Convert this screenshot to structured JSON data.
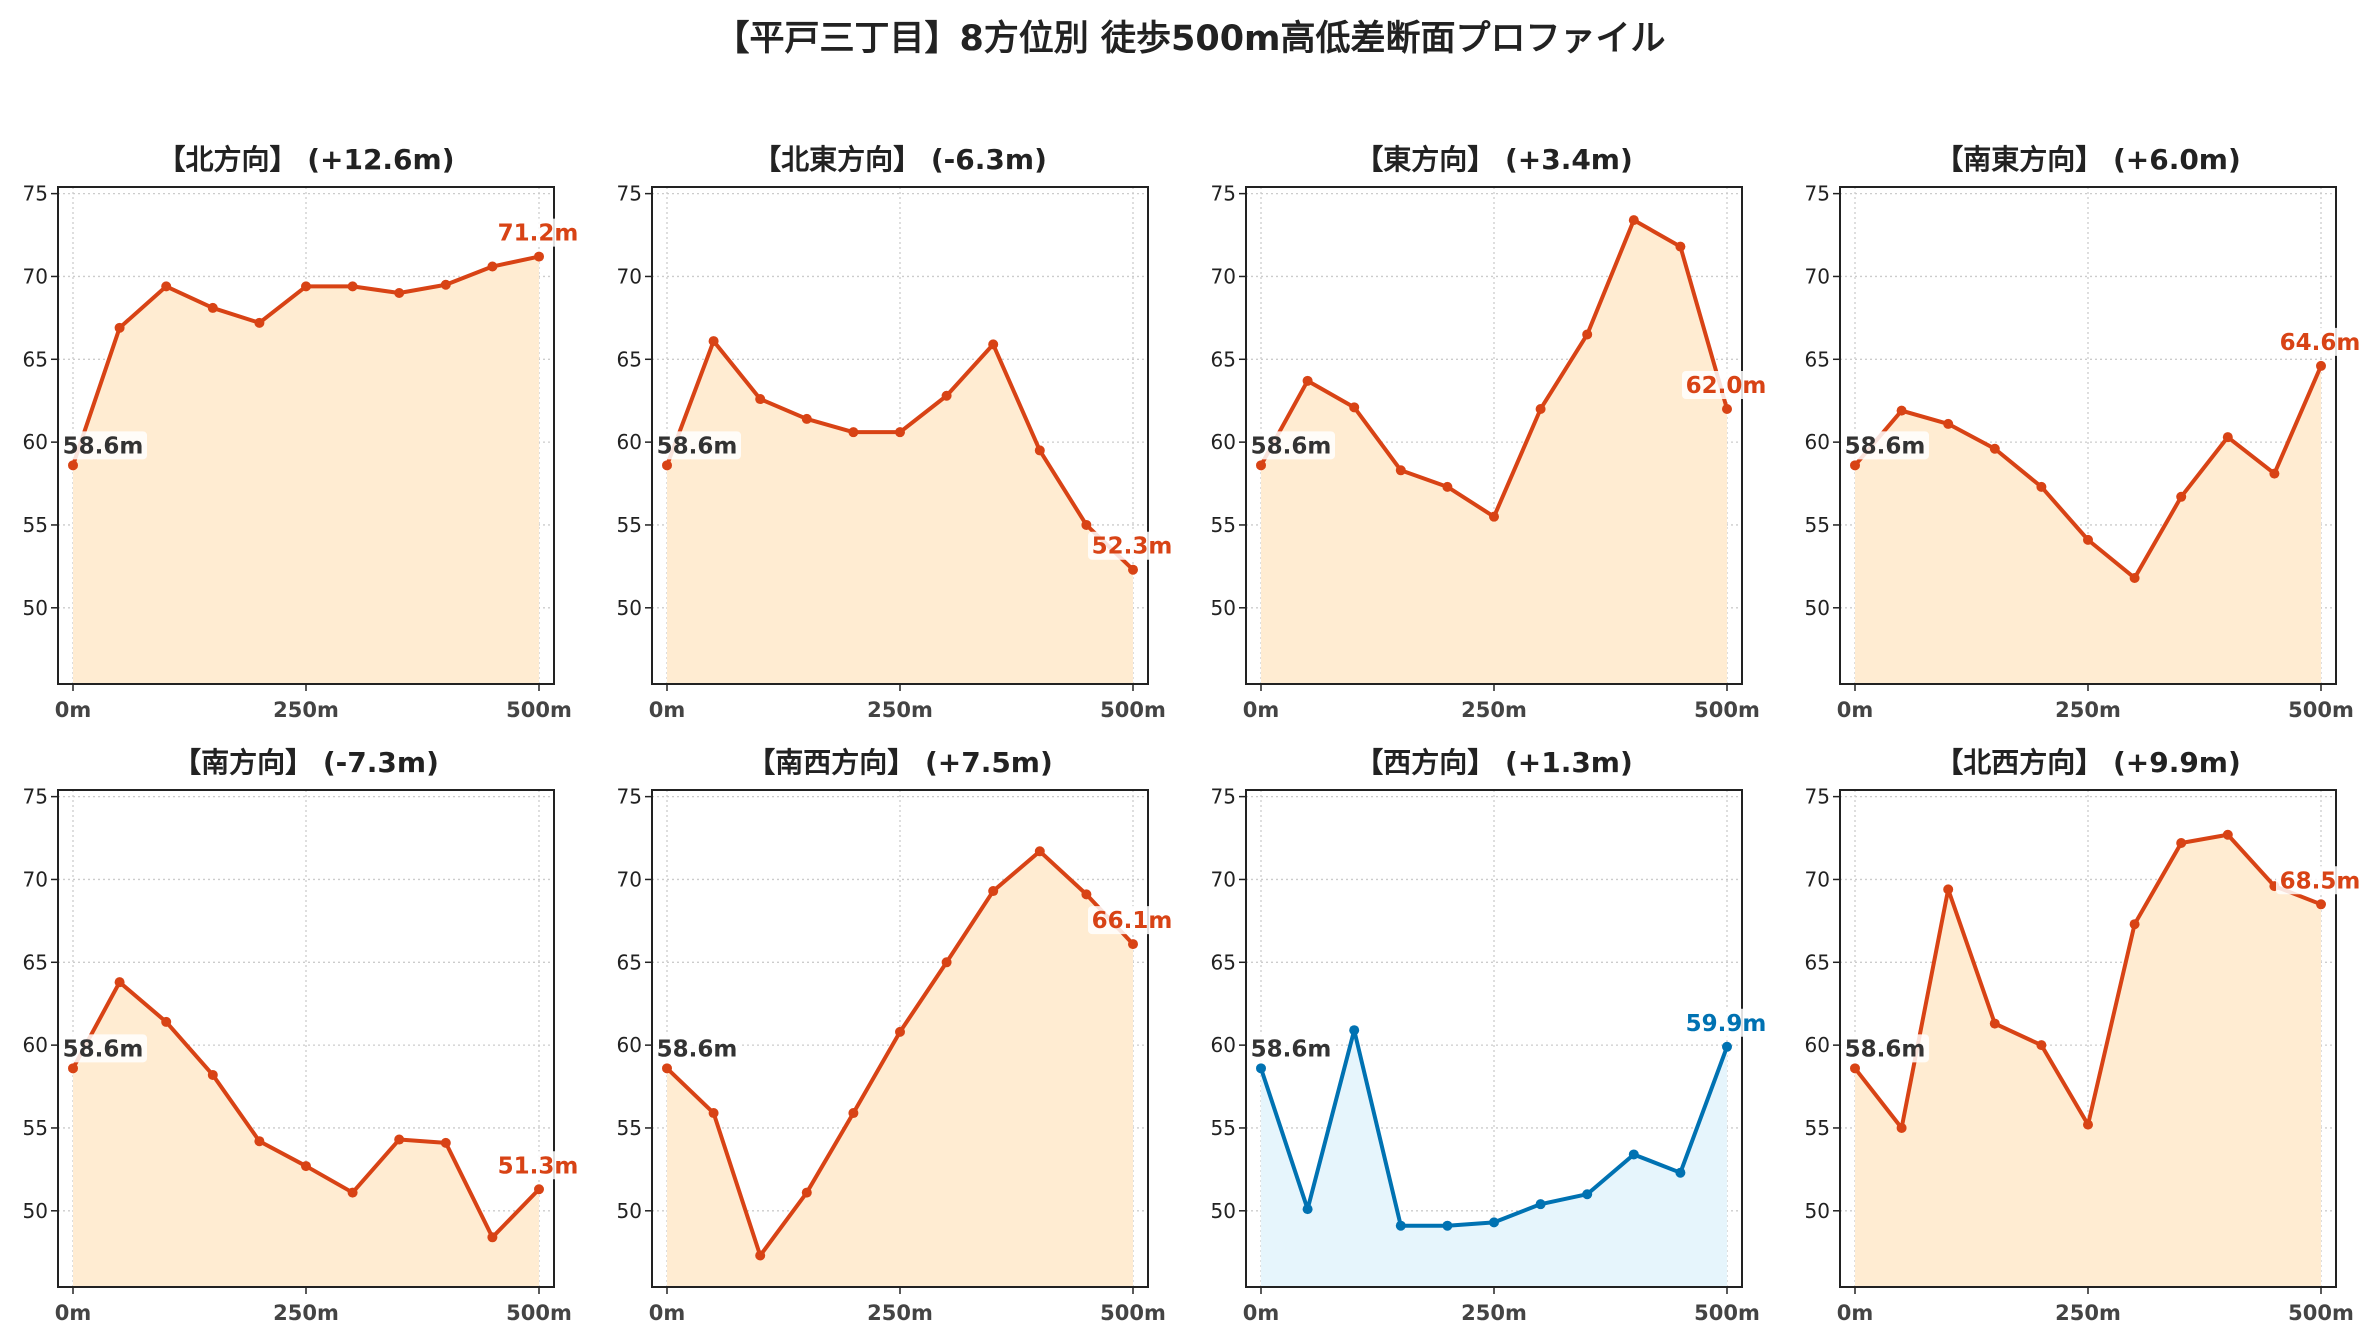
{
  "title": "【平戸三丁目】8方位別 徒歩500m高低差断面プロファイル",
  "chart_data": [
    {
      "type": "area",
      "title": "【北方向】 (+12.6m)",
      "x": [
        0,
        50,
        100,
        150,
        200,
        250,
        300,
        350,
        400,
        450,
        500
      ],
      "values": [
        58.6,
        66.9,
        69.4,
        68.1,
        67.2,
        69.4,
        69.4,
        69.0,
        69.5,
        70.6,
        71.2
      ],
      "start_label": "58.6m",
      "end_label": "71.2m",
      "ylim": [
        45.4,
        75.4
      ],
      "yticks": [
        50,
        55,
        60,
        65,
        70,
        75
      ],
      "xticks": [
        "0m",
        "250m",
        "500m"
      ],
      "color": "#d84315",
      "fill": "#ffecd2",
      "grid": true
    },
    {
      "type": "area",
      "title": "【北東方向】 (-6.3m)",
      "x": [
        0,
        50,
        100,
        150,
        200,
        250,
        300,
        350,
        400,
        450,
        500
      ],
      "values": [
        58.6,
        66.1,
        62.6,
        61.4,
        60.6,
        60.6,
        62.8,
        65.9,
        59.5,
        55.0,
        52.3
      ],
      "start_label": "58.6m",
      "end_label": "52.3m",
      "ylim": [
        45.4,
        75.4
      ],
      "yticks": [
        50,
        55,
        60,
        65,
        70,
        75
      ],
      "xticks": [
        "0m",
        "250m",
        "500m"
      ],
      "color": "#d84315",
      "fill": "#ffecd2",
      "grid": true
    },
    {
      "type": "area",
      "title": "【東方向】 (+3.4m)",
      "x": [
        0,
        50,
        100,
        150,
        200,
        250,
        300,
        350,
        400,
        450,
        500
      ],
      "values": [
        58.6,
        63.7,
        62.1,
        58.3,
        57.3,
        55.5,
        62.0,
        66.5,
        73.4,
        71.8,
        62.0
      ],
      "start_label": "58.6m",
      "end_label": "62.0m",
      "ylim": [
        45.4,
        75.4
      ],
      "yticks": [
        50,
        55,
        60,
        65,
        70,
        75
      ],
      "xticks": [
        "0m",
        "250m",
        "500m"
      ],
      "color": "#d84315",
      "fill": "#ffecd2",
      "grid": true
    },
    {
      "type": "area",
      "title": "【南東方向】 (+6.0m)",
      "x": [
        0,
        50,
        100,
        150,
        200,
        250,
        300,
        350,
        400,
        450,
        500
      ],
      "values": [
        58.6,
        61.9,
        61.1,
        59.6,
        57.3,
        54.1,
        51.8,
        56.7,
        60.3,
        58.1,
        64.6
      ],
      "start_label": "58.6m",
      "end_label": "64.6m",
      "ylim": [
        45.4,
        75.4
      ],
      "yticks": [
        50,
        55,
        60,
        65,
        70,
        75
      ],
      "xticks": [
        "0m",
        "250m",
        "500m"
      ],
      "color": "#d84315",
      "fill": "#ffecd2",
      "grid": true
    },
    {
      "type": "area",
      "title": "【南方向】 (-7.3m)",
      "x": [
        0,
        50,
        100,
        150,
        200,
        250,
        300,
        350,
        400,
        450,
        500
      ],
      "values": [
        58.6,
        63.8,
        61.4,
        58.2,
        54.2,
        52.7,
        51.1,
        54.3,
        54.1,
        48.4,
        51.3
      ],
      "start_label": "58.6m",
      "end_label": "51.3m",
      "ylim": [
        45.4,
        75.4
      ],
      "yticks": [
        50,
        55,
        60,
        65,
        70,
        75
      ],
      "xticks": [
        "0m",
        "250m",
        "500m"
      ],
      "color": "#d84315",
      "fill": "#ffecd2",
      "grid": true
    },
    {
      "type": "area",
      "title": "【南西方向】 (+7.5m)",
      "x": [
        0,
        50,
        100,
        150,
        200,
        250,
        300,
        350,
        400,
        450,
        500
      ],
      "values": [
        58.6,
        55.9,
        47.3,
        51.1,
        55.9,
        60.8,
        65.0,
        69.3,
        71.7,
        69.1,
        66.1
      ],
      "start_label": "58.6m",
      "end_label": "66.1m",
      "ylim": [
        45.4,
        75.4
      ],
      "yticks": [
        50,
        55,
        60,
        65,
        70,
        75
      ],
      "xticks": [
        "0m",
        "250m",
        "500m"
      ],
      "color": "#d84315",
      "fill": "#ffecd2",
      "grid": true
    },
    {
      "type": "area",
      "title": "【西方向】 (+1.3m)",
      "x": [
        0,
        50,
        100,
        150,
        200,
        250,
        300,
        350,
        400,
        450,
        500
      ],
      "values": [
        58.6,
        50.1,
        60.9,
        49.1,
        49.1,
        49.3,
        50.4,
        51.0,
        53.4,
        52.3,
        59.9
      ],
      "start_label": "58.6m",
      "end_label": "59.9m",
      "ylim": [
        45.4,
        75.4
      ],
      "yticks": [
        50,
        55,
        60,
        65,
        70,
        75
      ],
      "xticks": [
        "0m",
        "250m",
        "500m"
      ],
      "color": "#0072b2",
      "fill": "#e6f5fc",
      "grid": true
    },
    {
      "type": "area",
      "title": "【北西方向】 (+9.9m)",
      "x": [
        0,
        50,
        100,
        150,
        200,
        250,
        300,
        350,
        400,
        450,
        500
      ],
      "values": [
        58.6,
        55.0,
        69.4,
        61.3,
        60.0,
        55.2,
        67.3,
        72.2,
        72.7,
        69.6,
        68.5
      ],
      "start_label": "58.6m",
      "end_label": "68.5m",
      "ylim": [
        45.4,
        75.4
      ],
      "yticks": [
        50,
        55,
        60,
        65,
        70,
        75
      ],
      "xticks": [
        "0m",
        "250m",
        "500m"
      ],
      "color": "#d84315",
      "fill": "#ffecd2",
      "grid": true
    }
  ]
}
